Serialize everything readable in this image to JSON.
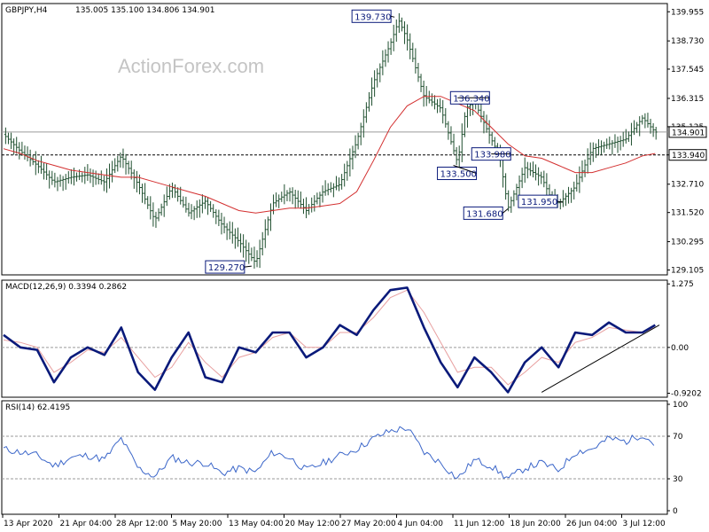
{
  "header": {
    "instrument": "GBPJPY,H4",
    "ohlc": "135.005 135.100 134.806 134.901",
    "macd": "MACD(12,26,9) 0.3394 0.2862",
    "rsi": "RSI(14) 62.4195"
  },
  "watermark": "ActionForex.com",
  "colors": {
    "bars": "#1f4f2f",
    "ma": "#d32f2f",
    "macd": "#0a1a7a",
    "signal": "#e8a0a0",
    "rsi": "#3b66c9",
    "label_border": "#0a1a7a",
    "grid": "#9a9a9a"
  },
  "chart_data": [
    {
      "type": "line",
      "panel": "price",
      "x_tick_labels": [
        "13 Apr 2020",
        "21 Apr 04:00",
        "28 Apr 12:00",
        "5 May 20:00",
        "13 May 04:00",
        "20 May 12:00",
        "27 May 20:00",
        "4 Jun 04:00",
        "11 Jun 12:00",
        "18 Jun 20:00",
        "26 Jun 04:00",
        "3 Jul 12:00"
      ],
      "y_tick_labels": [
        "139.955",
        "138.730",
        "137.545",
        "136.315",
        "135.125",
        "133.940",
        "132.710",
        "131.520",
        "130.295",
        "129.105"
      ],
      "y_ticks": [
        139.955,
        138.73,
        137.545,
        136.315,
        135.125,
        133.94,
        132.71,
        131.52,
        130.295,
        129.105
      ],
      "ylim": [
        128.9,
        140.3
      ],
      "current_price": 134.901,
      "current_price_label": "134.901",
      "reference_level": 133.94,
      "reference_level_label": "133.940",
      "annotations": [
        {
          "label": "139.730",
          "x": 93,
          "y": 139.73
        },
        {
          "label": "136.340",
          "x": 108,
          "y": 136.34
        },
        {
          "label": "133.500",
          "x": 107,
          "y": 133.5
        },
        {
          "label": "133.980",
          "x": 116,
          "y": 133.98
        },
        {
          "label": "131.680",
          "x": 120,
          "y": 131.68
        },
        {
          "label": "131.950",
          "x": 133,
          "y": 131.95
        },
        {
          "label": "129.270",
          "x": 59,
          "y": 129.27
        }
      ],
      "series": [
        {
          "x": [
            0,
            4,
            8,
            12,
            16,
            20,
            24,
            28,
            32,
            36,
            40,
            44,
            48,
            52,
            56,
            60,
            64,
            68,
            72,
            76,
            80,
            84,
            88,
            92,
            94,
            96,
            100,
            104,
            108,
            110,
            112,
            116,
            118,
            120,
            124,
            128,
            130,
            132,
            136,
            140,
            144,
            148,
            152,
            155
          ],
          "values": [
            134.8,
            134.1,
            133.5,
            132.8,
            133.0,
            133.1,
            132.8,
            133.9,
            132.7,
            131.2,
            132.6,
            131.5,
            132.0,
            131.0,
            130.3,
            129.4,
            131.9,
            132.4,
            131.6,
            132.4,
            132.7,
            134.5,
            137.0,
            138.6,
            139.6,
            138.8,
            136.4,
            135.9,
            133.6,
            135.9,
            136.2,
            134.6,
            133.9,
            131.7,
            133.4,
            133.0,
            132.2,
            131.9,
            132.6,
            134.2,
            134.4,
            134.6,
            135.5,
            134.9
          ]
        },
        {
          "x": [
            0,
            4,
            8,
            12,
            16,
            20,
            24,
            28,
            32,
            36,
            40,
            44,
            48,
            52,
            56,
            60,
            64,
            68,
            72,
            76,
            80,
            84,
            88,
            92,
            96,
            100,
            104,
            108,
            112,
            116,
            120,
            124,
            128,
            132,
            136,
            140,
            144,
            148,
            152,
            155
          ],
          "values": [
            134.2,
            134.0,
            133.7,
            133.5,
            133.3,
            133.2,
            133.1,
            133.0,
            133.0,
            132.8,
            132.6,
            132.4,
            132.2,
            131.9,
            131.6,
            131.5,
            131.6,
            131.7,
            131.7,
            131.8,
            131.9,
            132.4,
            133.7,
            135.1,
            136.0,
            136.4,
            136.4,
            136.1,
            135.8,
            135.1,
            134.4,
            133.9,
            133.8,
            133.5,
            133.2,
            133.2,
            133.4,
            133.6,
            133.9,
            134.0
          ]
        }
      ]
    },
    {
      "type": "line",
      "panel": "macd",
      "y_tick_labels": [
        "1.275",
        "0.00",
        "-0.9202"
      ],
      "y_ticks": [
        1.275,
        0.0,
        -0.9202
      ],
      "ylim": [
        -1.0,
        1.35
      ],
      "x": [
        0,
        4,
        8,
        12,
        16,
        20,
        24,
        28,
        32,
        36,
        40,
        44,
        48,
        52,
        56,
        60,
        64,
        68,
        72,
        76,
        80,
        84,
        88,
        92,
        96,
        100,
        104,
        108,
        112,
        116,
        120,
        124,
        128,
        132,
        136,
        140,
        144,
        148,
        152,
        155
      ],
      "series": [
        {
          "values": [
            0.25,
            0.0,
            -0.05,
            -0.7,
            -0.2,
            0.0,
            -0.15,
            0.4,
            -0.5,
            -0.85,
            -0.2,
            0.3,
            -0.6,
            -0.7,
            0.0,
            -0.1,
            0.3,
            0.3,
            -0.2,
            0.0,
            0.45,
            0.25,
            0.75,
            1.15,
            1.2,
            0.4,
            -0.3,
            -0.8,
            -0.2,
            -0.5,
            -0.9,
            -0.3,
            0.0,
            -0.4,
            0.3,
            0.25,
            0.5,
            0.3,
            0.3,
            0.45
          ]
        },
        {
          "values": [
            0.15,
            0.1,
            0.0,
            -0.5,
            -0.3,
            -0.05,
            -0.1,
            0.2,
            -0.2,
            -0.6,
            -0.4,
            0.1,
            -0.3,
            -0.6,
            -0.2,
            -0.1,
            0.2,
            0.3,
            0.0,
            0.0,
            0.3,
            0.3,
            0.6,
            1.0,
            1.15,
            0.7,
            0.1,
            -0.5,
            -0.4,
            -0.4,
            -0.75,
            -0.5,
            -0.2,
            -0.3,
            0.1,
            0.2,
            0.4,
            0.35,
            0.3,
            0.4
          ]
        }
      ],
      "trendline": {
        "x": [
          128,
          156
        ],
        "values": [
          -0.9,
          0.45
        ]
      }
    },
    {
      "type": "line",
      "panel": "rsi",
      "y_tick_labels": [
        "100",
        "70",
        "30",
        "0"
      ],
      "y_ticks": [
        100,
        70,
        30,
        0
      ],
      "ylim": [
        0,
        100
      ],
      "levels": [
        70,
        30
      ],
      "x": [
        0,
        4,
        8,
        12,
        16,
        20,
        24,
        28,
        32,
        36,
        40,
        44,
        48,
        52,
        56,
        60,
        64,
        68,
        72,
        76,
        80,
        84,
        88,
        92,
        96,
        100,
        104,
        108,
        112,
        116,
        120,
        124,
        128,
        132,
        136,
        140,
        144,
        148,
        152,
        155
      ],
      "series": [
        {
          "values": [
            58,
            55,
            52,
            42,
            50,
            52,
            48,
            68,
            40,
            32,
            50,
            45,
            45,
            35,
            40,
            36,
            55,
            50,
            38,
            45,
            52,
            58,
            68,
            75,
            78,
            55,
            45,
            30,
            48,
            42,
            30,
            40,
            45,
            38,
            55,
            58,
            68,
            65,
            72,
            62
          ]
        }
      ]
    }
  ]
}
